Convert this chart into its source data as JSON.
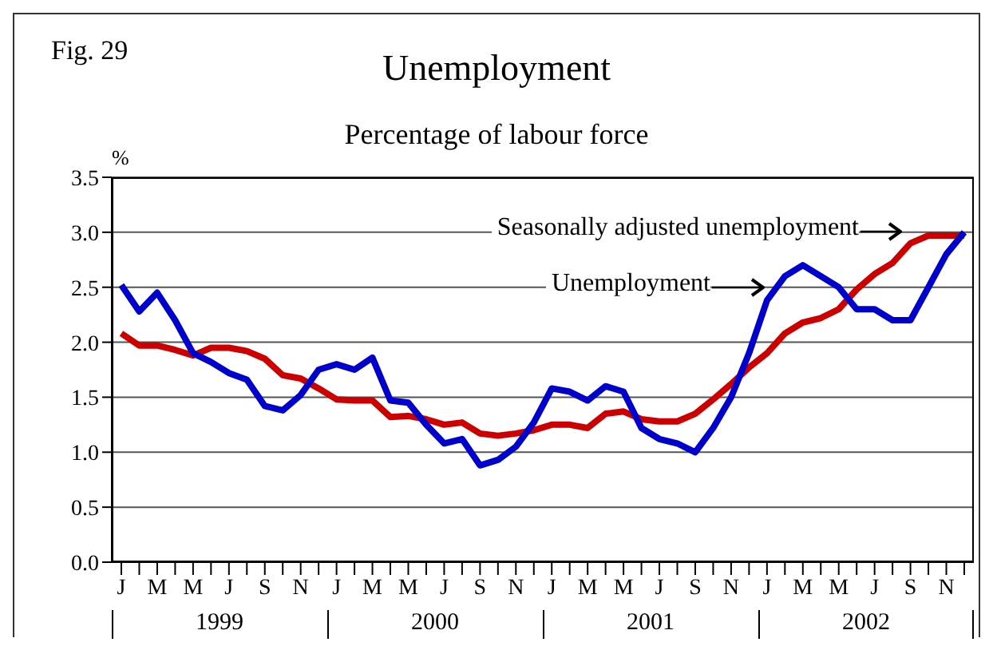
{
  "chart_data": {
    "type": "line",
    "title": "Unemployment",
    "subtitle": "Percentage of labour force",
    "ylabel": "%",
    "annotations": [
      "Fig. 29",
      "1999",
      "2000",
      "2001",
      "2002"
    ],
    "categories": [
      "J",
      null,
      "M",
      null,
      "M",
      null,
      "J",
      null,
      "S",
      null,
      "N",
      null,
      "J",
      null,
      "M",
      null,
      "M",
      null,
      "J",
      null,
      "S",
      null,
      "N",
      null,
      "J",
      null,
      "M",
      null,
      "M",
      null,
      "J",
      null,
      "S",
      null,
      "N",
      null,
      "J",
      null,
      "M",
      null,
      "M",
      null,
      "J",
      null,
      "S",
      null,
      "N",
      null
    ],
    "series": [
      {
        "name": "Seasonally adjusted unemployment",
        "color": "#cc0000",
        "values": [
          2.08,
          1.97,
          1.97,
          1.93,
          1.88,
          1.95,
          1.95,
          1.92,
          1.85,
          1.7,
          1.67,
          1.58,
          1.48,
          1.47,
          1.47,
          1.32,
          1.33,
          1.3,
          1.25,
          1.27,
          1.17,
          1.15,
          1.17,
          1.2,
          1.25,
          1.25,
          1.22,
          1.35,
          1.37,
          1.3,
          1.28,
          1.28,
          1.35,
          1.48,
          1.62,
          1.77,
          1.9,
          2.08,
          2.18,
          2.22,
          2.3,
          2.48,
          2.62,
          2.72,
          2.9,
          2.97,
          2.97,
          2.97
        ]
      },
      {
        "name": "Unemployment",
        "color": "#0000cc",
        "values": [
          2.52,
          2.28,
          2.45,
          2.2,
          1.9,
          1.82,
          1.72,
          1.66,
          1.42,
          1.38,
          1.52,
          1.75,
          1.8,
          1.75,
          1.86,
          1.47,
          1.45,
          1.25,
          1.08,
          1.12,
          0.88,
          0.93,
          1.05,
          1.27,
          1.58,
          1.55,
          1.47,
          1.6,
          1.55,
          1.22,
          1.12,
          1.08,
          1.0,
          1.22,
          1.5,
          1.9,
          2.38,
          2.6,
          2.7,
          2.6,
          2.5,
          2.3,
          2.3,
          2.2,
          2.2,
          2.5,
          2.8,
          3.0
        ]
      }
    ],
    "ylim": [
      0,
      3.5
    ],
    "yticks": [
      {
        "value": 0,
        "label": "0.0"
      },
      0.5,
      {
        "value": 1,
        "label": "1.0"
      },
      1.5,
      {
        "value": 2,
        "label": "2.0"
      },
      2.5,
      {
        "value": 3,
        "label": "3.0"
      },
      3.5
    ],
    "grid": "y",
    "marker": "none",
    "line_style": "solid"
  }
}
